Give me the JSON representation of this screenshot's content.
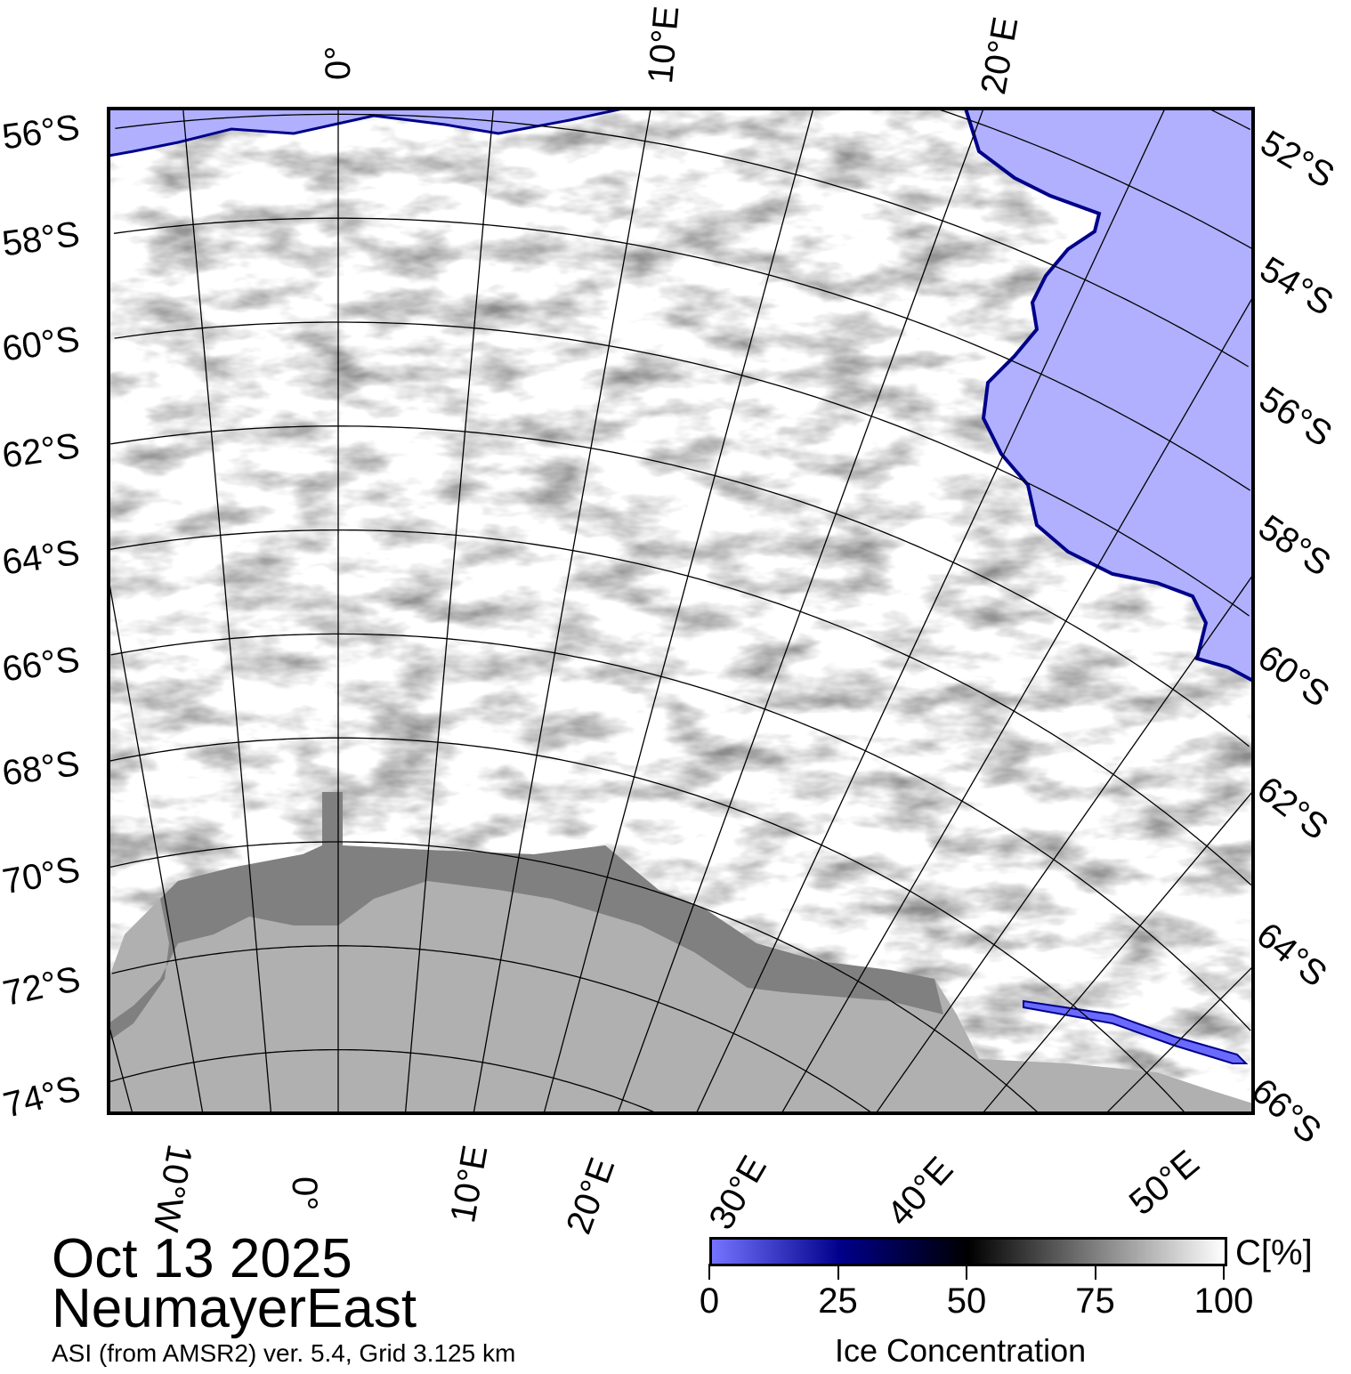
{
  "map": {
    "date": "Oct 13 2025",
    "region": "NeumayerEast",
    "source": "ASI (from AMSR2) ver. 5.4,  Grid 3.125 km",
    "colors": {
      "ocean": "#b0b0ff",
      "land": "#b0b0b0",
      "ice_shelf": "#808080",
      "frame": "#000000"
    },
    "lat_labels_left": [
      "56°S",
      "58°S",
      "60°S",
      "62°S",
      "64°S",
      "66°S",
      "68°S",
      "70°S",
      "72°S",
      "74°S"
    ],
    "lat_labels_right": [
      "52°S",
      "54°S",
      "56°S",
      "58°S",
      "60°S",
      "62°S",
      "64°S",
      "66°S"
    ],
    "lon_labels_top": [
      "0°",
      "10°E",
      "20°E"
    ],
    "lon_labels_bottom": [
      "10°W",
      "0°",
      "10°E",
      "20°E",
      "30°E",
      "40°E",
      "50°E"
    ]
  },
  "colorbar": {
    "unit": "C[%]",
    "title": "Ice Concentration",
    "ticks": [
      "0",
      "25",
      "50",
      "75",
      "100"
    ],
    "colors": [
      "#7474ff",
      "#00008a",
      "#000000",
      "#808080",
      "#ffffff"
    ]
  }
}
